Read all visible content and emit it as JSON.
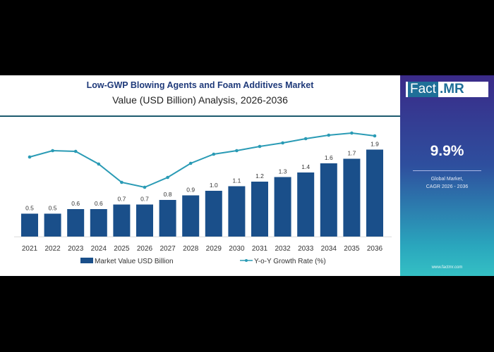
{
  "header": {
    "title": "Low-GWP Blowing Agents and Foam Additives Market",
    "subtitle": "Value (USD Billion) Analysis, 2026-2036"
  },
  "sidebar": {
    "logo_part1": "Fact",
    "logo_part2": ".MR",
    "cagr_value": "9.9%",
    "cagr_line1": "Global Market,",
    "cagr_line2": "CAGR 2026 - 2036",
    "url": "www.factmr.com"
  },
  "colors": {
    "bar": "#1a4f8a",
    "line": "#2a9bb5",
    "title": "#1f3a7a"
  },
  "chart_data": {
    "type": "bar",
    "title": "Low-GWP Blowing Agents and Foam Additives Market",
    "subtitle": "Value (USD Billion) Analysis, 2026-2036",
    "categories": [
      "2021",
      "2022",
      "2023",
      "2024",
      "2025",
      "2026",
      "2027",
      "2028",
      "2029",
      "2030",
      "2031",
      "2032",
      "2033",
      "2034",
      "2035",
      "2036"
    ],
    "series": [
      {
        "name": "Market Value USD Billion",
        "type": "bar",
        "values": [
          0.5,
          0.5,
          0.6,
          0.6,
          0.7,
          0.7,
          0.8,
          0.9,
          1.0,
          1.1,
          1.2,
          1.3,
          1.4,
          1.6,
          1.7,
          1.9
        ],
        "labels": [
          "0.5",
          "0.5",
          "0.6",
          "0.6",
          "0.7",
          "0.7",
          "0.8",
          "0.9",
          "1.0",
          "1.1",
          "1.2",
          "1.3",
          "1.4",
          "1.6",
          "1.7",
          "1.9"
        ]
      },
      {
        "name": "Y-o-Y Growth Rate (%)",
        "type": "line",
        "values": [
          7.7,
          8.6,
          8.5,
          6.7,
          4.1,
          3.4,
          4.8,
          6.8,
          8.1,
          8.6,
          9.2,
          9.7,
          10.3,
          10.8,
          11.1,
          10.7
        ]
      }
    ],
    "ylim": [
      0,
      1.9
    ],
    "growth_ylim": [
      3.4,
      11.1
    ],
    "grid": false,
    "legend": "bottom"
  }
}
